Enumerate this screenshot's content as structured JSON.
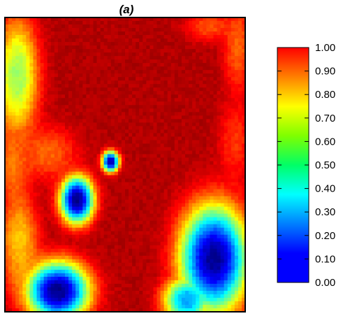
{
  "chart_data": {
    "type": "heatmap",
    "title": "(a)",
    "xlabel": "",
    "ylabel": "",
    "colormap": "jet",
    "colorbar": {
      "range": [
        0.0,
        1.0
      ],
      "ticks": [
        "1.00",
        "0.90",
        "0.80",
        "0.70",
        "0.60",
        "0.50",
        "0.40",
        "0.30",
        "0.20",
        "0.10",
        "0.00"
      ],
      "tick_values": [
        1.0,
        0.9,
        0.8,
        0.7,
        0.6,
        0.5,
        0.4,
        0.3,
        0.2,
        0.1,
        0.0
      ],
      "placement": "right"
    },
    "field": {
      "nx": 68,
      "ny": 84,
      "base": 0.97,
      "features": [
        {
          "kind": "low",
          "cx": 0.22,
          "cy": 0.93,
          "rx": 0.13,
          "ry": 0.1,
          "value": 0.03
        },
        {
          "kind": "low",
          "cx": 0.3,
          "cy": 0.62,
          "rx": 0.07,
          "ry": 0.08,
          "value": 0.03
        },
        {
          "kind": "low",
          "cx": 0.44,
          "cy": 0.49,
          "rx": 0.035,
          "ry": 0.035,
          "value": 0.05
        },
        {
          "kind": "low",
          "cx": 0.87,
          "cy": 0.82,
          "rx": 0.14,
          "ry": 0.18,
          "value": 0.04
        },
        {
          "kind": "low",
          "cx": 0.76,
          "cy": 0.96,
          "rx": 0.1,
          "ry": 0.08,
          "value": 0.3
        },
        {
          "kind": "mid",
          "cx": 0.05,
          "cy": 0.2,
          "rx": 0.09,
          "ry": 0.2,
          "value": 0.55
        },
        {
          "kind": "mid",
          "cx": 0.03,
          "cy": 0.5,
          "rx": 0.07,
          "ry": 0.12,
          "value": 0.78
        },
        {
          "kind": "mid",
          "cx": 0.06,
          "cy": 0.76,
          "rx": 0.08,
          "ry": 0.16,
          "value": 0.7
        },
        {
          "kind": "mid",
          "cx": 0.97,
          "cy": 0.1,
          "rx": 0.06,
          "ry": 0.15,
          "value": 0.8
        },
        {
          "kind": "mid",
          "cx": 0.96,
          "cy": 0.42,
          "rx": 0.07,
          "ry": 0.14,
          "value": 0.85
        },
        {
          "kind": "mid",
          "cx": 0.18,
          "cy": 0.46,
          "rx": 0.12,
          "ry": 0.09,
          "value": 0.8
        },
        {
          "kind": "mid",
          "cx": 0.85,
          "cy": 0.03,
          "rx": 0.1,
          "ry": 0.05,
          "value": 0.82
        }
      ]
    }
  }
}
